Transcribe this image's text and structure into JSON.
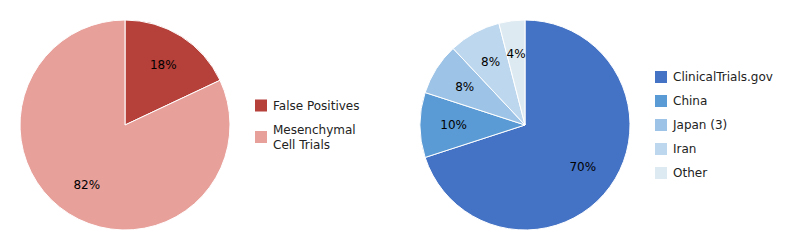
{
  "chart_data": [
    {
      "type": "pie",
      "categories": [
        "False Positives",
        "Mesenchymal\nCell Trials"
      ],
      "values": [
        18,
        82
      ],
      "value_labels": [
        "18%",
        "82%"
      ],
      "colors": [
        "#b5413a",
        "#e8a09b"
      ],
      "data_labels": true,
      "legend": "right"
    },
    {
      "type": "pie",
      "categories": [
        "ClinicalTrials.gov",
        "China",
        "Japan (3)",
        "Iran",
        "Other"
      ],
      "values": [
        70,
        10,
        8,
        8,
        4
      ],
      "value_labels": [
        "70%",
        "10%",
        "8%",
        "8%",
        "4%"
      ],
      "colors": [
        "#4472c4",
        "#5b9bd5",
        "#9dc3e6",
        "#bdd7ee",
        "#deeaf1"
      ],
      "data_labels": true,
      "legend": "right"
    }
  ]
}
